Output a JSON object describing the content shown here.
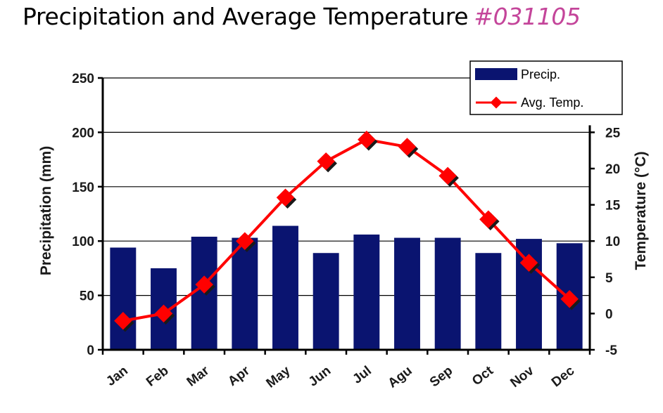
{
  "title": {
    "main": "Precipitation and Average Temperature",
    "tag": "#031105"
  },
  "colors": {
    "bar": "#0a1470",
    "line": "#ff0000",
    "tag": "#c4459a"
  },
  "chart_data": {
    "type": "bar",
    "categories": [
      "Jan",
      "Feb",
      "Mar",
      "Apr",
      "May",
      "Jun",
      "Jul",
      "Agu",
      "Sep",
      "Oct",
      "Nov",
      "Dec"
    ],
    "series": [
      {
        "name": "Precip.",
        "type": "bar",
        "axis": "left",
        "values": [
          94,
          75,
          104,
          103,
          114,
          89,
          106,
          103,
          103,
          89,
          102,
          98
        ]
      },
      {
        "name": "Avg. Temp.",
        "type": "line",
        "axis": "right",
        "values": [
          -1,
          0,
          4,
          10,
          16,
          21,
          24,
          23,
          19,
          13,
          7,
          2
        ]
      }
    ],
    "ylabel": "Precipitation (mm)",
    "y2label": "Temperature (°C)",
    "ylim": [
      0,
      250
    ],
    "y2lim": [
      -5,
      25
    ],
    "yticks": [
      "0",
      "50",
      "100",
      "150",
      "200",
      "250"
    ],
    "y2ticks": [
      "-5",
      "0",
      "5",
      "10",
      "15",
      "20",
      "25"
    ],
    "grid": true,
    "legend": "top-right"
  }
}
